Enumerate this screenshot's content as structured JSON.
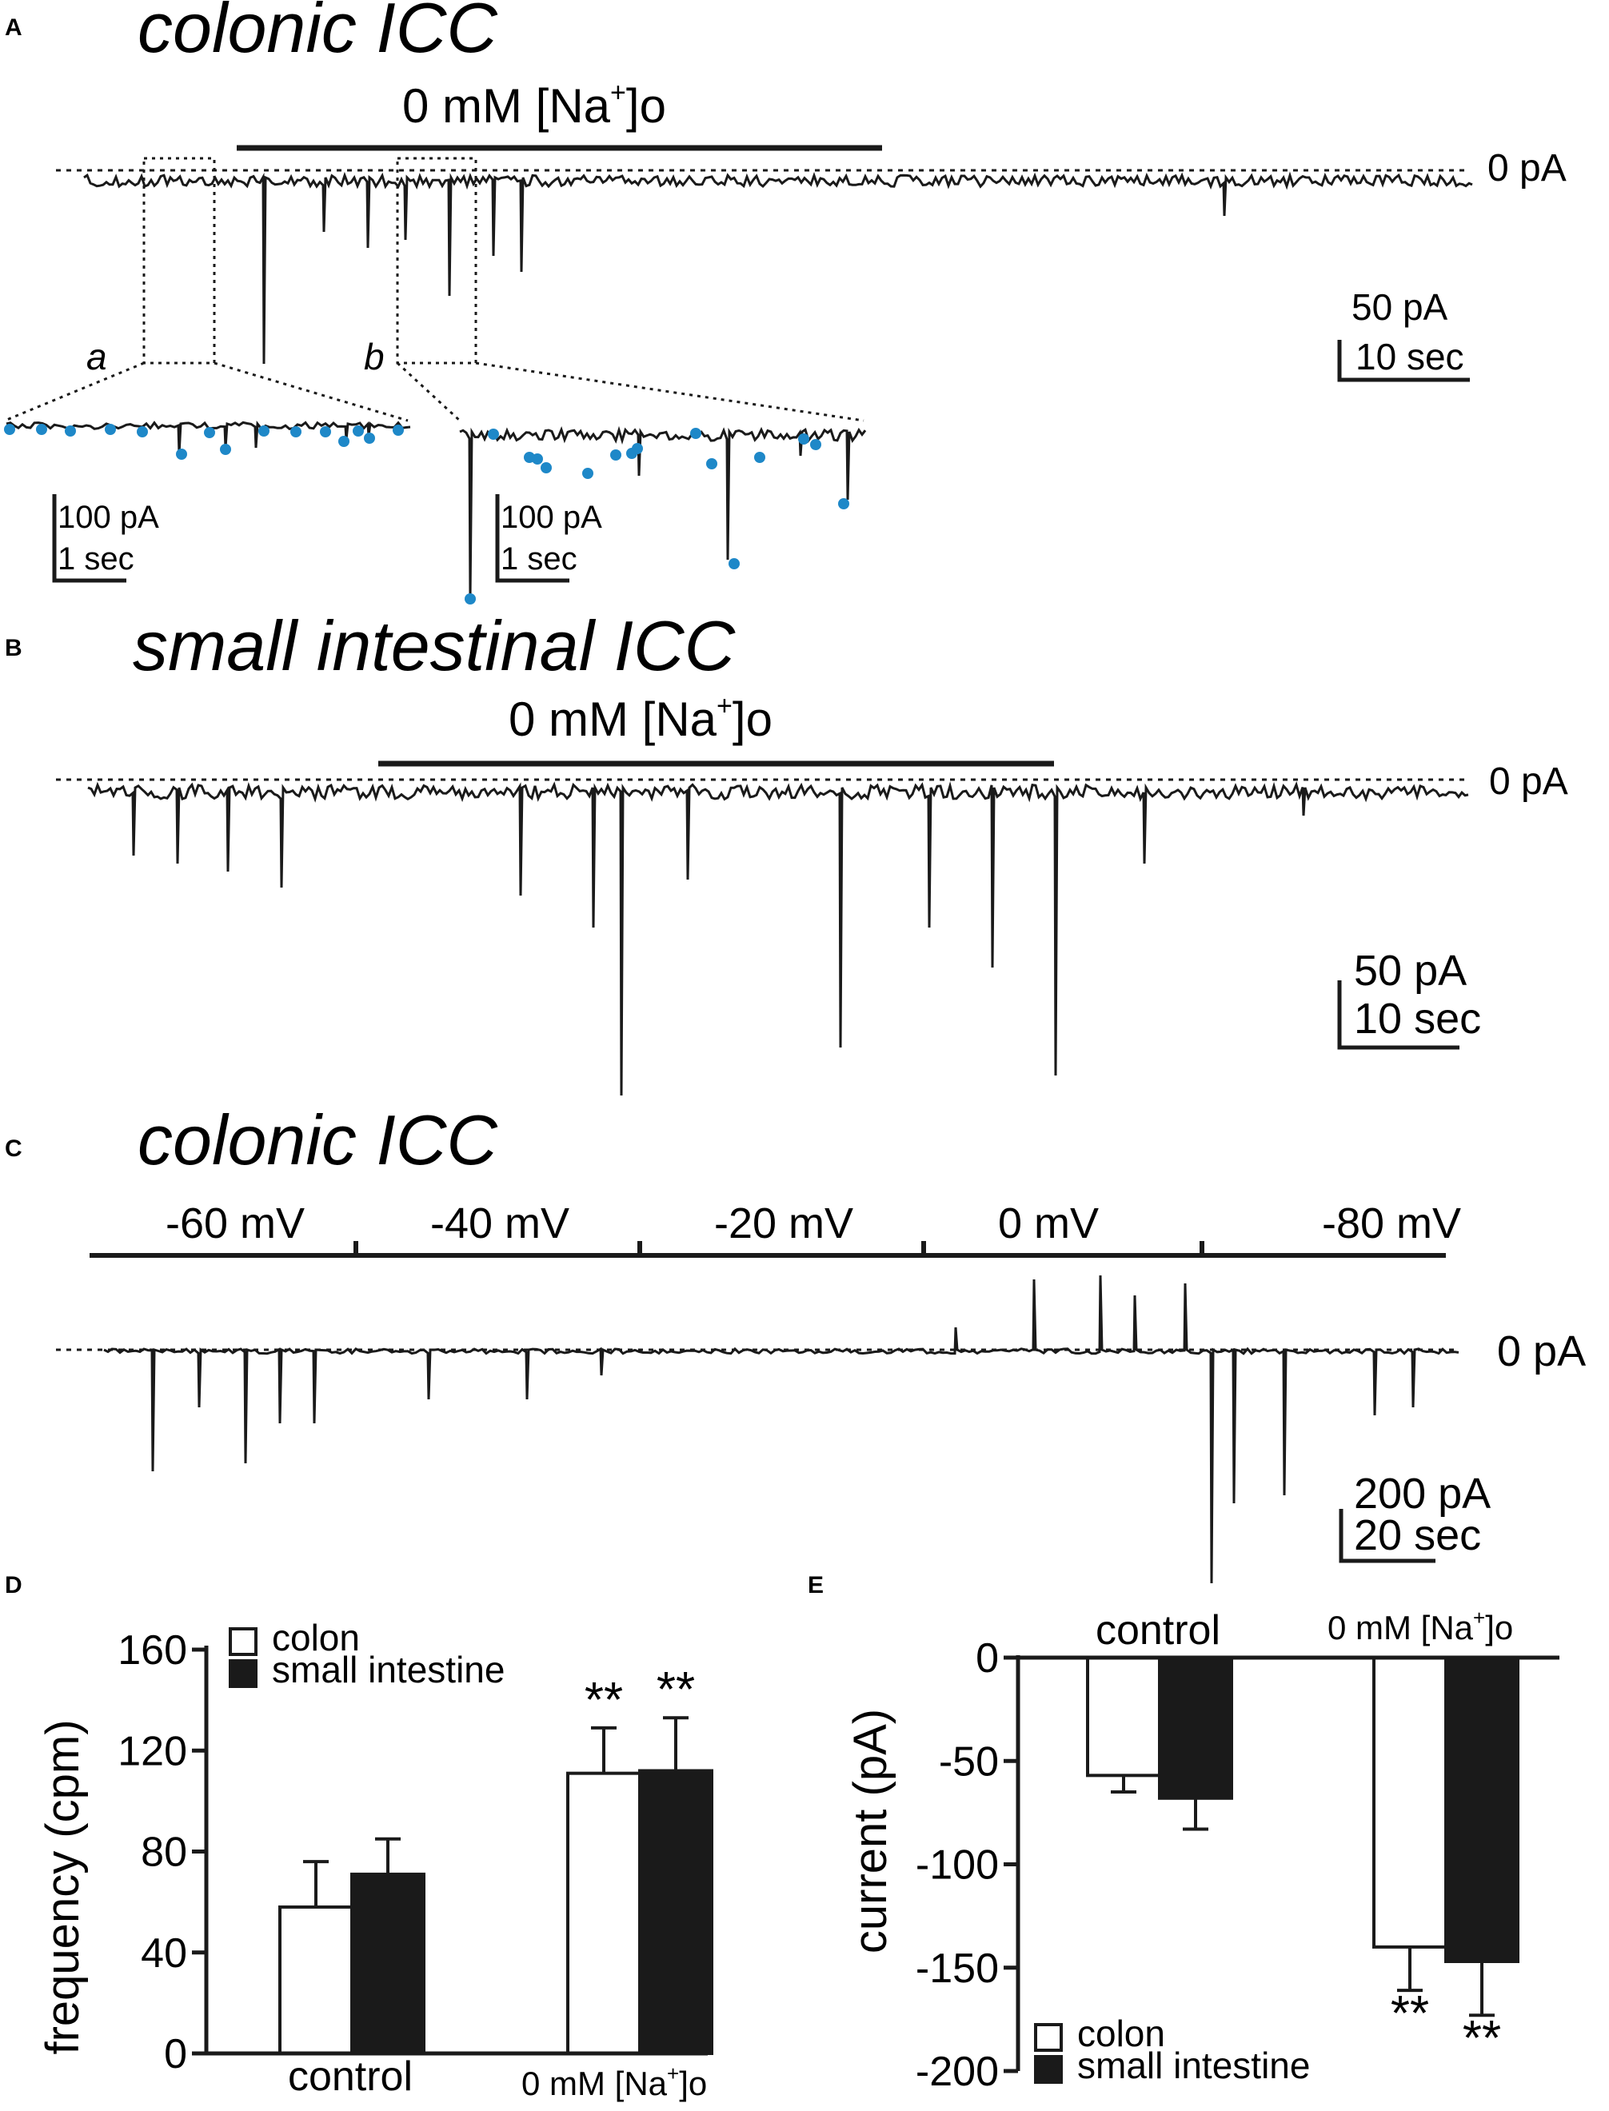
{
  "panels": {
    "A": {
      "letter": "A",
      "title": "colonic ICC",
      "condition": "0 mM [Na",
      "condition_sup": "+",
      "condition_sub": "]o",
      "zero_label": "0 pA",
      "scale_current": "50 pA",
      "scale_time": "10 sec",
      "inset_a": {
        "label": "a",
        "scale_current": "100 pA",
        "scale_time": "1 sec"
      },
      "inset_b": {
        "label": "b",
        "scale_current": "100 pA",
        "scale_time": "1 sec"
      }
    },
    "B": {
      "letter": "B",
      "title": "small intestinal ICC",
      "condition": "0 mM [Na",
      "condition_sup": "+",
      "condition_sub": "]o",
      "zero_label": "0 pA",
      "scale_current": "50 pA",
      "scale_time": "10 sec"
    },
    "C": {
      "letter": "C",
      "title": "colonic ICC",
      "voltages": [
        "-60 mV",
        "-40 mV",
        "-20 mV",
        "0 mV",
        "-80 mV"
      ],
      "zero_label": "0 pA",
      "scale_current": "200 pA",
      "scale_time": "20 sec"
    },
    "D": {
      "letter": "D"
    },
    "E": {
      "letter": "E"
    }
  },
  "colors": {
    "trace": "#1a1a1a",
    "event_marker": "#1e88c8",
    "bar_small_intestine": "#1a1a1a",
    "bar_colon": "#ffffff"
  },
  "chart_data": [
    {
      "panel": "D",
      "type": "bar",
      "categories": [
        "control",
        "0 mM [Na+]o"
      ],
      "category_labels": [
        "control",
        "0 mM [Na",
        "+",
        "]o"
      ],
      "series": [
        {
          "name": "colon",
          "values": [
            58,
            111
          ],
          "errors": [
            18,
            18
          ]
        },
        {
          "name": "small intestine",
          "values": [
            71,
            112
          ],
          "errors": [
            14,
            21
          ]
        }
      ],
      "ylabel": "frequency (cpm)",
      "ylim": [
        0,
        160
      ],
      "yticks": [
        0,
        40,
        80,
        120,
        160
      ],
      "significance": [
        "",
        "**"
      ],
      "legend": "top-left",
      "grid": false
    },
    {
      "panel": "E",
      "type": "bar",
      "categories": [
        "control",
        "0 mM [Na+]o"
      ],
      "category_labels": [
        "control",
        "0 mM [Na",
        "+",
        "]o"
      ],
      "series": [
        {
          "name": "colon",
          "values": [
            -57,
            -140
          ],
          "errors": [
            8,
            21
          ]
        },
        {
          "name": "small intestine",
          "values": [
            -68,
            -147
          ],
          "errors": [
            15,
            26
          ]
        }
      ],
      "ylabel": "current (pA)",
      "ylim": [
        -200,
        0
      ],
      "yticks": [
        0,
        -50,
        -100,
        -150,
        -200
      ],
      "significance": [
        "",
        "**"
      ],
      "legend": "bottom-left",
      "grid": false
    }
  ]
}
